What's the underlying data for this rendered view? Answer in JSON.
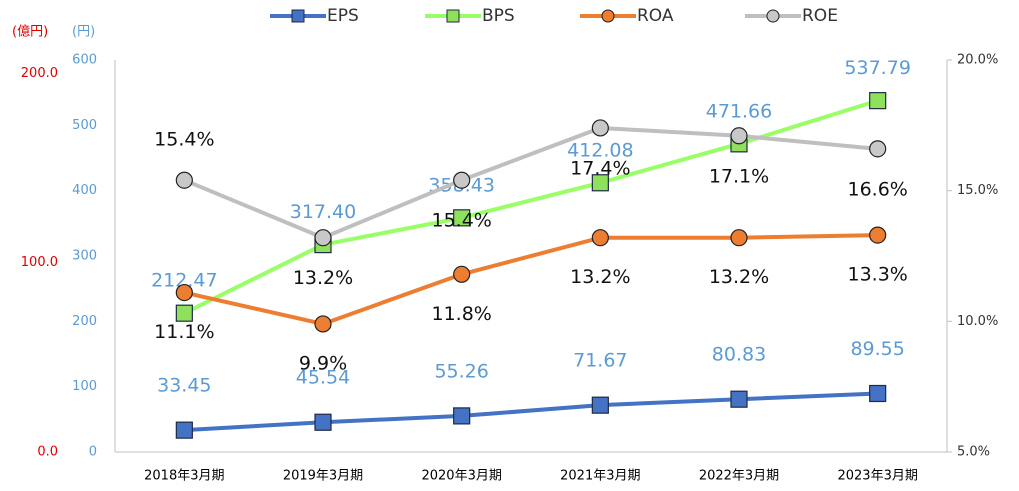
{
  "chart_data": {
    "type": "line",
    "categories": [
      "2018年3月期",
      "2019年3月期",
      "2020年3月期",
      "2021年3月期",
      "2022年3月期",
      "2023年3月期"
    ],
    "y_unit_label": "(円)",
    "y3_unit_label": "(億円)",
    "ylim": [
      0,
      600
    ],
    "yticks": [
      0,
      100,
      200,
      300,
      400,
      500,
      600
    ],
    "y2lim": [
      5,
      20
    ],
    "y2ticks": [
      {
        "value": 5,
        "label": "5.0%"
      },
      {
        "value": 10,
        "label": "10.0%"
      },
      {
        "value": 15,
        "label": "15.0%"
      },
      {
        "value": 20,
        "label": "20.0%"
      }
    ],
    "y3lim": [
      0,
      207
    ],
    "y3ticks": [
      {
        "value": 0,
        "label": "0.0"
      },
      {
        "value": 100,
        "label": "100.0"
      },
      {
        "value": 200,
        "label": "200.0"
      }
    ],
    "legend": "top",
    "series": [
      {
        "name": "EPS",
        "color": "#4472c4",
        "marker": "square",
        "values": [
          33.45,
          45.54,
          55.26,
          71.67,
          80.83,
          89.55
        ],
        "value_labels": [
          "33.45",
          "45.54",
          "55.26",
          "71.67",
          "80.83",
          "89.55"
        ]
      },
      {
        "name": "BPS",
        "color": "#99ff66",
        "marker": "square",
        "values": [
          212.47,
          317.4,
          358.43,
          412.08,
          471.66,
          537.79
        ],
        "value_labels": [
          "212.47",
          "317.40",
          "358.43",
          "412.08",
          "471.66",
          "537.79"
        ]
      },
      {
        "name": "ROA",
        "color": "#ed7d31",
        "marker": "circle",
        "axis": "y2",
        "values": [
          11.1,
          9.9,
          11.8,
          13.2,
          13.2,
          13.3
        ],
        "value_labels": [
          "11.1%",
          "9.9%",
          "11.8%",
          "13.2%",
          "13.2%",
          "13.3%"
        ]
      },
      {
        "name": "ROE",
        "color": "#bfbfbf",
        "marker": "circle",
        "axis": "y2",
        "values": [
          15.4,
          13.2,
          15.4,
          17.4,
          17.1,
          16.6
        ],
        "value_labels": [
          "15.4%",
          "13.2%",
          "15.4%",
          "17.4%",
          "17.1%",
          "16.6%"
        ]
      }
    ]
  }
}
